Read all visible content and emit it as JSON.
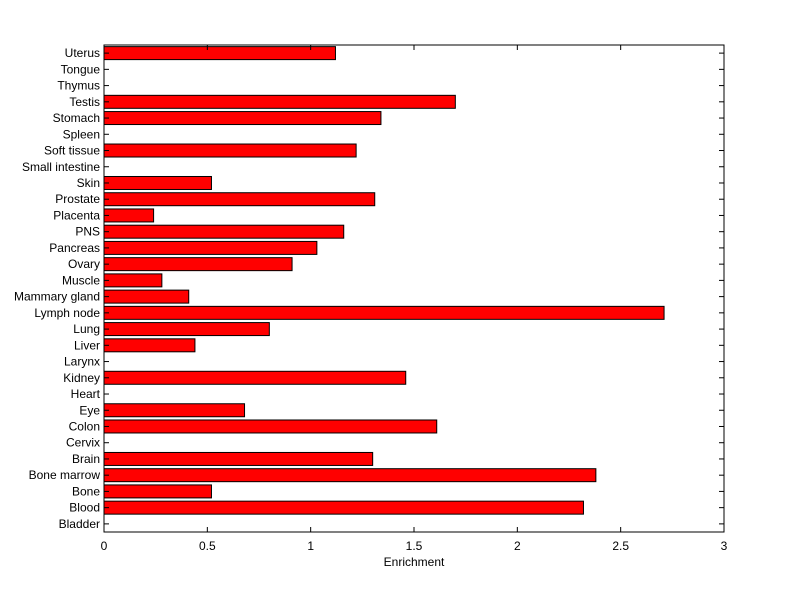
{
  "chart_data": {
    "type": "bar",
    "orientation": "horizontal",
    "categories": [
      "Bladder",
      "Blood",
      "Bone",
      "Bone marrow",
      "Brain",
      "Cervix",
      "Colon",
      "Eye",
      "Heart",
      "Kidney",
      "Larynx",
      "Liver",
      "Lung",
      "Lymph node",
      "Mammary gland",
      "Muscle",
      "Ovary",
      "Pancreas",
      "PNS",
      "Placenta",
      "Prostate",
      "Skin",
      "Small intestine",
      "Soft tissue",
      "Spleen",
      "Stomach",
      "Testis",
      "Thymus",
      "Tongue",
      "Uterus"
    ],
    "values": [
      0,
      2.32,
      0.52,
      2.38,
      1.3,
      0,
      1.61,
      0.68,
      0,
      1.46,
      0,
      0.44,
      0.8,
      2.71,
      0.41,
      0.28,
      0.91,
      1.03,
      1.16,
      0.24,
      1.31,
      0.52,
      0,
      1.22,
      0,
      1.34,
      1.7,
      0,
      0,
      1.12
    ],
    "xlabel": "Enrichment",
    "ylabel": "",
    "title": "",
    "xlim": [
      0,
      3
    ],
    "xticks": [
      "0",
      "0.5",
      "1",
      "1.5",
      "2",
      "2.5",
      "3"
    ],
    "bar_color": "#ff0000",
    "grid": false,
    "legend": "none"
  }
}
